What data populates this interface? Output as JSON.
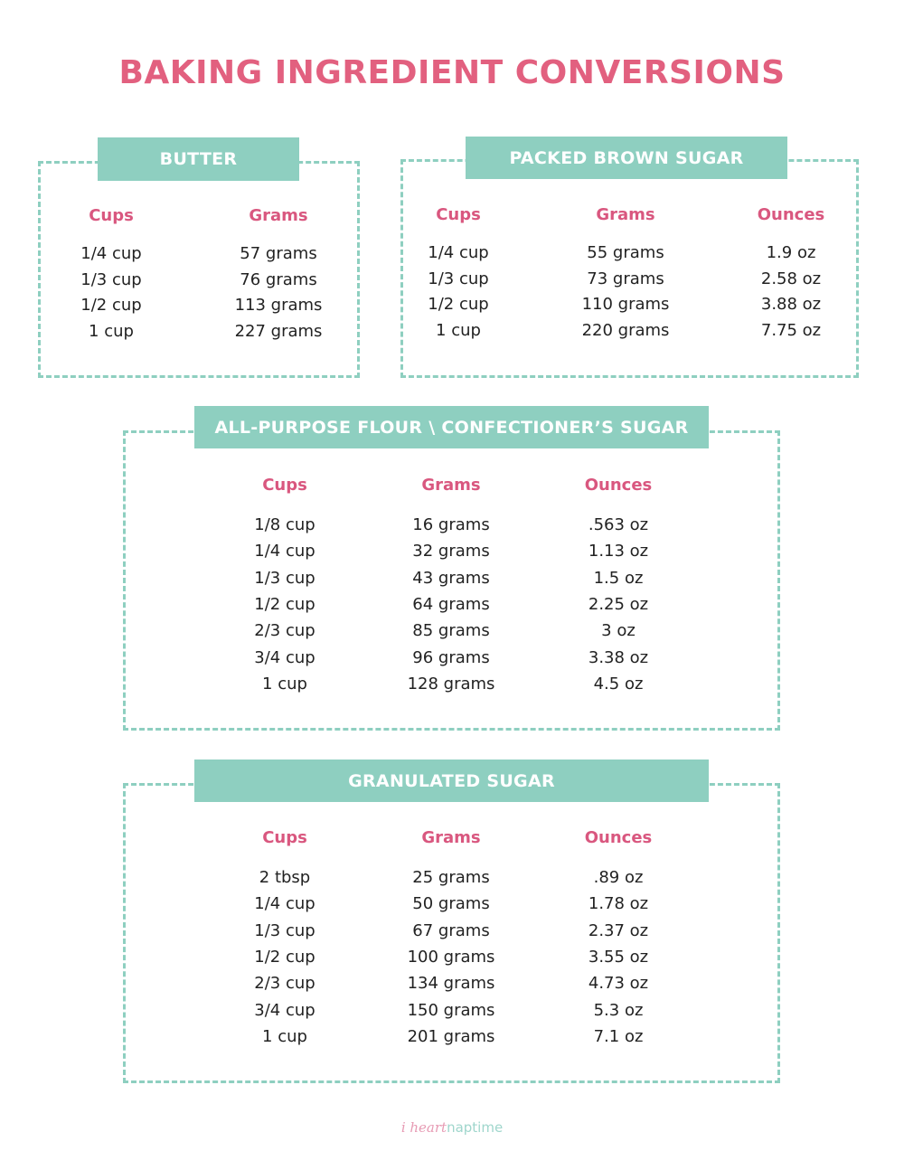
{
  "title": "BAKING INGREDIENT CONVERSIONS",
  "colors": {
    "title": "#e2607f",
    "header_text": "#d9577f",
    "accent_teal": "#8ecfc0"
  },
  "sections": [
    {
      "name": "BUTTER",
      "columns": [
        "Cups",
        "Grams"
      ],
      "rows": [
        [
          "1/4 cup",
          "57 grams"
        ],
        [
          "1/3 cup",
          "76 grams"
        ],
        [
          "1/2 cup",
          "113 grams"
        ],
        [
          "1 cup",
          "227 grams"
        ]
      ]
    },
    {
      "name": "PACKED BROWN SUGAR",
      "columns": [
        "Cups",
        "Grams",
        "Ounces"
      ],
      "rows": [
        [
          "1/4 cup",
          "55 grams",
          "1.9 oz"
        ],
        [
          "1/3 cup",
          "73 grams",
          "2.58 oz"
        ],
        [
          "1/2 cup",
          "110 grams",
          "3.88 oz"
        ],
        [
          "1 cup",
          "220 grams",
          "7.75 oz"
        ]
      ]
    },
    {
      "name": "ALL-PURPOSE FLOUR \\ CONFECTIONER’S SUGAR",
      "columns": [
        "Cups",
        "Grams",
        "Ounces"
      ],
      "rows": [
        [
          "1/8 cup",
          "16 grams",
          ".563 oz"
        ],
        [
          "1/4 cup",
          "32 grams",
          "1.13 oz"
        ],
        [
          "1/3 cup",
          "43 grams",
          "1.5 oz"
        ],
        [
          "1/2 cup",
          "64 grams",
          "2.25 oz"
        ],
        [
          "2/3 cup",
          "85 grams",
          "3 oz"
        ],
        [
          "3/4 cup",
          "96 grams",
          "3.38 oz"
        ],
        [
          "1 cup",
          "128 grams",
          "4.5 oz"
        ]
      ]
    },
    {
      "name": "GRANULATED SUGAR",
      "columns": [
        "Cups",
        "Grams",
        "Ounces"
      ],
      "rows": [
        [
          "2 tbsp",
          "25 grams",
          ".89 oz"
        ],
        [
          "1/4 cup",
          "50 grams",
          "1.78 oz"
        ],
        [
          "1/3 cup",
          "67 grams",
          "2.37 oz"
        ],
        [
          "1/2 cup",
          "100 grams",
          "3.55 oz"
        ],
        [
          "2/3 cup",
          "134 grams",
          "4.73 oz"
        ],
        [
          "3/4 cup",
          "150 grams",
          "5.3 oz"
        ],
        [
          "1 cup",
          "201 grams",
          "7.1 oz"
        ]
      ]
    }
  ],
  "logo": {
    "part1": "i heart",
    "part2": "naptime"
  }
}
